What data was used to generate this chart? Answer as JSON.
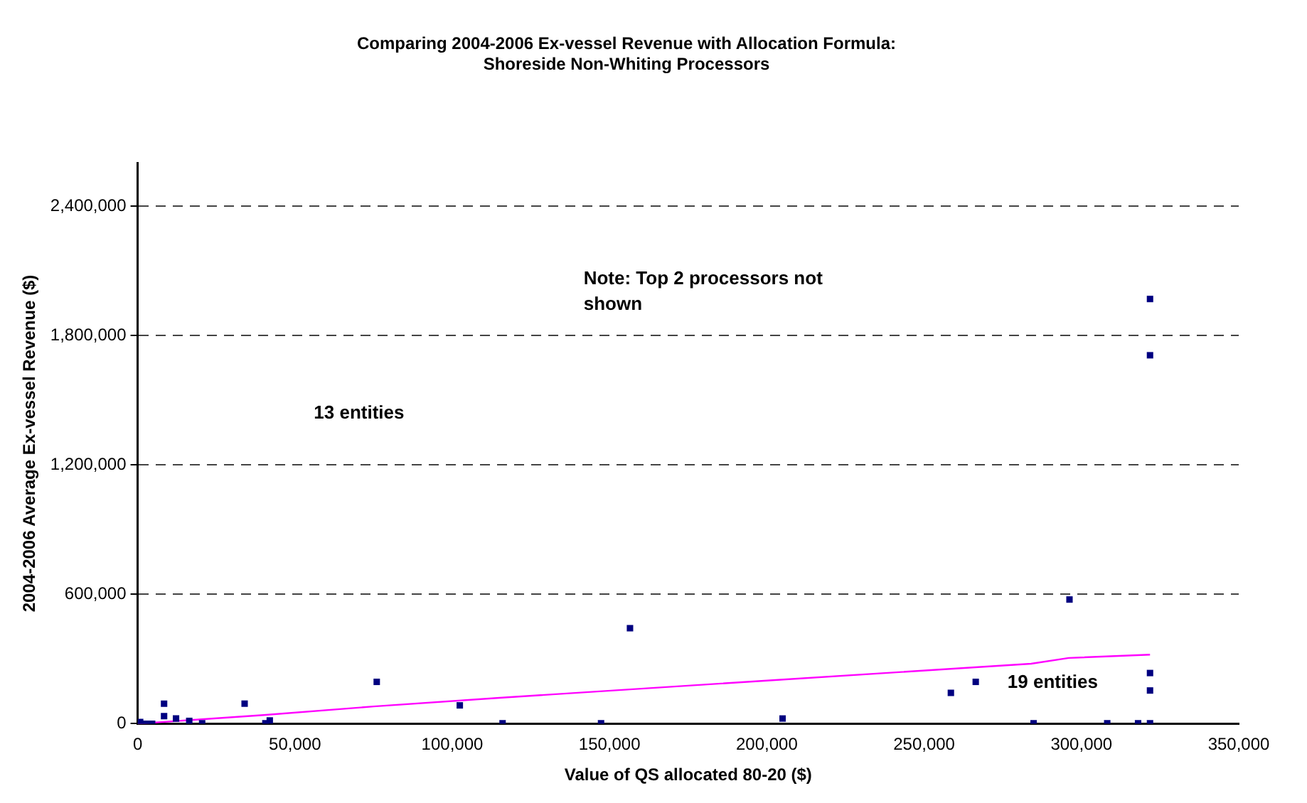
{
  "chart_data": {
    "type": "scatter",
    "title": "Comparing 2004-2006 Ex-vessel Revenue with Allocation Formula:\nShoreside Non-Whiting Processors",
    "xlabel": "Value of QS allocated 80-20 ($)",
    "ylabel": "2004-2006 Average Ex-vessel Revenue ($)",
    "xlim": [
      0,
      350000
    ],
    "xticks": [
      {
        "value": 0,
        "label": "0"
      },
      {
        "value": 50000,
        "label": "50,000"
      },
      {
        "value": 100000,
        "label": "100,000"
      },
      {
        "value": 150000,
        "label": "150,000"
      },
      {
        "value": 200000,
        "label": "200,000"
      },
      {
        "value": 250000,
        "label": "250,000"
      },
      {
        "value": 300000,
        "label": "300,000"
      },
      {
        "value": 350000,
        "label": "350,000"
      }
    ],
    "ylim": [
      0,
      2600000
    ],
    "yticks": [
      {
        "value": 0,
        "label": "0"
      },
      {
        "value": 600000,
        "label": "600,000"
      },
      {
        "value": 1200000,
        "label": "1,200,000"
      },
      {
        "value": 1800000,
        "label": "1,800,000"
      },
      {
        "value": 2400000,
        "label": "2,400,000"
      }
    ],
    "grid": "y",
    "legend": false,
    "series": [
      {
        "color": "#000080",
        "marker": "square",
        "x": [
          800,
          2700,
          4600,
          8400,
          8400,
          12200,
          16400,
          20500,
          34000,
          40600,
          42000,
          76000,
          102400,
          116000,
          147300,
          156500,
          205000,
          258500,
          266400,
          284800,
          296200,
          308200,
          318000,
          321800,
          321800,
          321800,
          321800,
          321800
        ],
        "values": [
          8000,
          0,
          0,
          93000,
          35000,
          24000,
          13000,
          2000,
          93000,
          2000,
          15000,
          194000,
          85000,
          2000,
          2000,
          443000,
          24000,
          143000,
          194000,
          2000,
          576000,
          2000,
          2000,
          2000,
          154000,
          235000,
          1709000,
          1970000
        ]
      },
      {
        "type": "line",
        "color": "#ff00ff",
        "marker": "none",
        "line_style": "solid",
        "x": [
          0,
          40000,
          75000,
          115000,
          200000,
          284000,
          296000,
          321800
        ],
        "values": [
          0,
          40000,
          80000,
          120000,
          200000,
          278000,
          305000,
          320000
        ]
      }
    ],
    "annotations": [
      "Note: Top 2 processors not\nshown",
      "13 entities",
      "19 entities"
    ]
  }
}
